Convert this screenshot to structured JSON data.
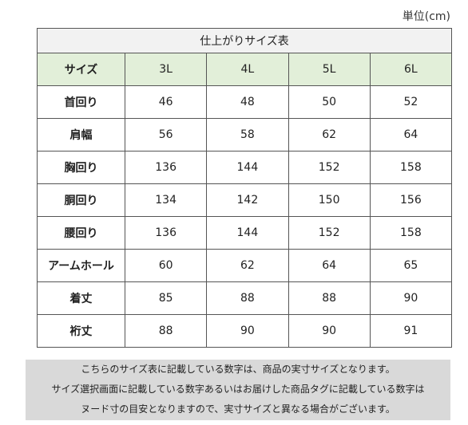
{
  "unit_label": "単位(cm)",
  "table": {
    "title": "仕上がりサイズ表",
    "header_label": "サイズ",
    "sizes": [
      "3L",
      "4L",
      "5L",
      "6L"
    ],
    "rows": [
      {
        "label": "首回り",
        "values": [
          "46",
          "48",
          "50",
          "52"
        ]
      },
      {
        "label": "肩幅",
        "values": [
          "56",
          "58",
          "62",
          "64"
        ]
      },
      {
        "label": "胸回り",
        "values": [
          "136",
          "144",
          "152",
          "158"
        ]
      },
      {
        "label": "胴回り",
        "values": [
          "134",
          "142",
          "150",
          "156"
        ]
      },
      {
        "label": "腰回り",
        "values": [
          "136",
          "144",
          "152",
          "158"
        ]
      },
      {
        "label": "アームホール",
        "values": [
          "60",
          "62",
          "64",
          "65"
        ]
      },
      {
        "label": "着丈",
        "values": [
          "85",
          "88",
          "88",
          "90"
        ]
      },
      {
        "label": "裄丈",
        "values": [
          "88",
          "90",
          "90",
          "91"
        ]
      }
    ]
  },
  "note": {
    "lines": [
      "こちらのサイズ表に記載している数字は、商品の実寸サイズとなります。",
      "サイズ選択画面に記載している数字あるいはお届けした商品タグに記載している数字は",
      "ヌード寸の目安となりますので、実寸サイズと異なる場合がございます。"
    ]
  },
  "colors": {
    "title_bg": "#f2f2f2",
    "header_bg": "#e2efd9",
    "note_bg": "#d9d9d9"
  }
}
